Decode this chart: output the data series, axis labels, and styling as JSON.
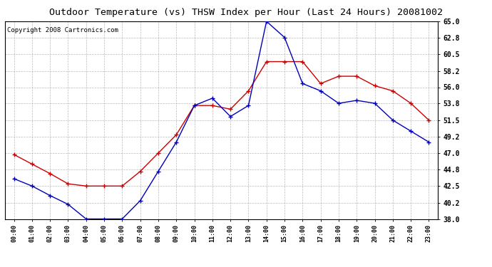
{
  "title": "Outdoor Temperature (vs) THSW Index per Hour (Last 24 Hours) 20081002",
  "copyright": "Copyright 2008 Cartronics.com",
  "hours": [
    "00:00",
    "01:00",
    "02:00",
    "03:00",
    "04:00",
    "05:00",
    "06:00",
    "07:00",
    "08:00",
    "09:00",
    "10:00",
    "11:00",
    "12:00",
    "13:00",
    "14:00",
    "15:00",
    "16:00",
    "17:00",
    "18:00",
    "19:00",
    "20:00",
    "21:00",
    "22:00",
    "23:00"
  ],
  "temp_blue": [
    43.5,
    42.5,
    41.2,
    40.0,
    38.0,
    38.0,
    38.0,
    40.5,
    44.5,
    48.5,
    53.5,
    54.5,
    52.0,
    53.5,
    65.0,
    62.8,
    56.5,
    55.5,
    53.8,
    54.2,
    53.8,
    51.5,
    50.0,
    48.5
  ],
  "thsw_red": [
    46.8,
    45.5,
    44.2,
    42.8,
    42.5,
    42.5,
    42.5,
    44.5,
    47.0,
    49.5,
    53.5,
    53.5,
    53.0,
    55.5,
    59.5,
    59.5,
    59.5,
    56.5,
    57.5,
    57.5,
    56.2,
    55.5,
    53.8,
    51.5
  ],
  "ylim": [
    38.0,
    65.0
  ],
  "yticks": [
    38.0,
    40.2,
    42.5,
    44.8,
    47.0,
    49.2,
    51.5,
    53.8,
    56.0,
    58.2,
    60.5,
    62.8,
    65.0
  ],
  "blue_color": "#0000bb",
  "red_color": "#cc0000",
  "background_color": "#ffffff",
  "grid_color": "#aaaaaa",
  "title_fontsize": 9.5,
  "copyright_fontsize": 6.5
}
